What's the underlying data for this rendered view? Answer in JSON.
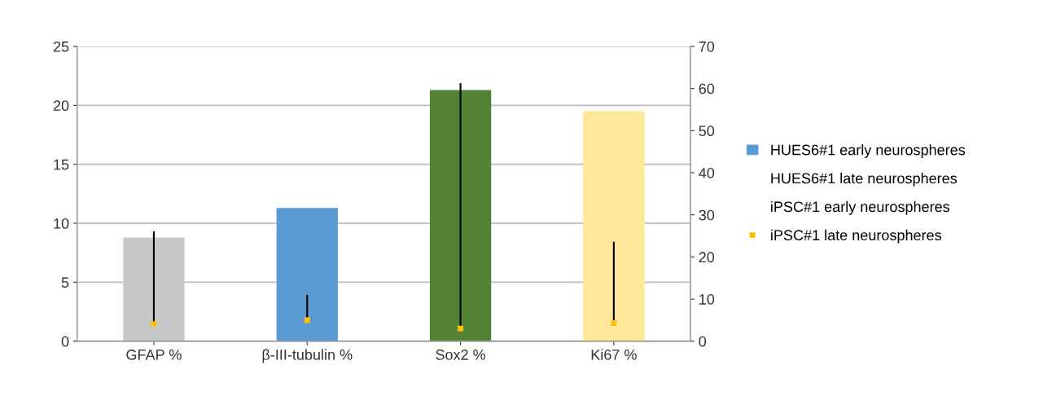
{
  "chart_data": {
    "type": "bar",
    "categories": [
      "GFAP %",
      "β-III-tubulin %",
      "Sox2 %",
      "Ki67 %"
    ],
    "series": [
      {
        "name": "HUES6#1 early neurospheres",
        "color": "#5b9bd5",
        "colors": [
          "#c8c8c8",
          "#5b9bd5",
          "#548235",
          "#ffe699"
        ],
        "values": [
          8.8,
          11.3,
          21.3,
          19.5
        ]
      },
      {
        "name": "HUES6#1 late neurospheres",
        "values": [
          null,
          null,
          null,
          null
        ]
      },
      {
        "name": "iPSC#1 early neurospheres",
        "values": [
          null,
          null,
          null,
          null
        ]
      },
      {
        "name": "iPSC#1 late neurospheres",
        "type": "scatter",
        "axis": "y2",
        "color": "#ffc000",
        "marker": "square",
        "values": [
          4.1,
          5.0,
          3.0,
          4.3
        ],
        "errors": [
          [
            4.1,
            25.9
          ],
          [
            5.0,
            10.8
          ],
          [
            3.0,
            61.1
          ],
          [
            4.3,
            23.4
          ]
        ]
      }
    ],
    "ylim": [
      0,
      25
    ],
    "yticks": [
      0,
      5,
      10,
      15,
      20,
      25
    ],
    "y2lim": [
      0,
      70
    ],
    "y2ticks": [
      0,
      10,
      20,
      30,
      40,
      50,
      60,
      70
    ],
    "grid": "y",
    "legend": "right"
  }
}
